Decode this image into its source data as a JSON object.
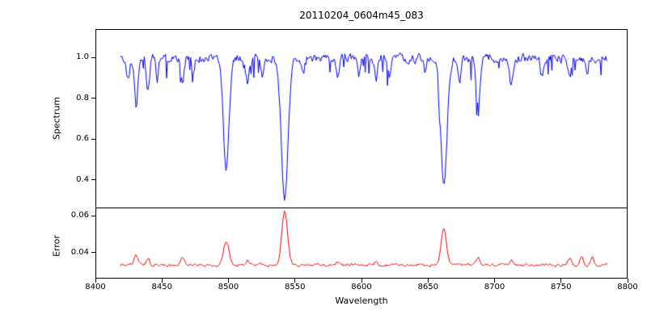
{
  "title": "20110204_0604m45_083",
  "x_axis": {
    "label": "Wavelength",
    "ticks": [
      "8400",
      "8450",
      "8500",
      "8550",
      "8600",
      "8650",
      "8700",
      "8750",
      "8800"
    ]
  },
  "chart_data": [
    {
      "panel": "spectrum",
      "type": "line",
      "ylabel": "Spectrum",
      "color": "#0000ee",
      "xlim": [
        8400,
        8800
      ],
      "ylim": [
        0.26,
        1.14
      ],
      "yticks": [
        "1.0",
        "0.8",
        "0.6",
        "0.4"
      ],
      "x_start": 8418,
      "x_end": 8786,
      "x_step": 0.7,
      "baseline": 1.0,
      "noise_sigma": 0.035,
      "spike_prob": 0.055,
      "spike_amp": 0.11,
      "seed": 83,
      "absorption_lines": [
        {
          "center": 8424.0,
          "depth": 0.1,
          "width": 1.2
        },
        {
          "center": 8430.0,
          "depth": 0.24,
          "width": 1.3
        },
        {
          "center": 8439.0,
          "depth": 0.17,
          "width": 1.2
        },
        {
          "center": 8446.0,
          "depth": 0.1,
          "width": 1.0
        },
        {
          "center": 8465.0,
          "depth": 0.13,
          "width": 1.2
        },
        {
          "center": 8473.0,
          "depth": 0.08,
          "width": 1.0
        },
        {
          "center": 8498.0,
          "depth": 0.55,
          "width": 2.2
        },
        {
          "center": 8514.0,
          "depth": 0.12,
          "width": 1.3
        },
        {
          "center": 8525.0,
          "depth": 0.08,
          "width": 1.0
        },
        {
          "center": 8542.1,
          "depth": 0.7,
          "width": 2.6
        },
        {
          "center": 8556.0,
          "depth": 0.08,
          "width": 1.0
        },
        {
          "center": 8582.0,
          "depth": 0.11,
          "width": 1.2
        },
        {
          "center": 8598.0,
          "depth": 0.09,
          "width": 1.0
        },
        {
          "center": 8611.0,
          "depth": 0.1,
          "width": 1.2
        },
        {
          "center": 8621.0,
          "depth": 0.09,
          "width": 1.0
        },
        {
          "center": 8648.0,
          "depth": 0.08,
          "width": 1.0
        },
        {
          "center": 8662.1,
          "depth": 0.63,
          "width": 2.4
        },
        {
          "center": 8674.0,
          "depth": 0.1,
          "width": 1.0
        },
        {
          "center": 8688.0,
          "depth": 0.24,
          "width": 1.5
        },
        {
          "center": 8713.0,
          "depth": 0.12,
          "width": 1.2
        },
        {
          "center": 8736.0,
          "depth": 0.09,
          "width": 1.1
        },
        {
          "center": 8757.0,
          "depth": 0.1,
          "width": 1.1
        },
        {
          "center": 8770.0,
          "depth": 0.08,
          "width": 1.0
        }
      ]
    },
    {
      "panel": "error",
      "type": "line",
      "ylabel": "Error",
      "color": "#ee0000",
      "xlim": [
        8400,
        8800
      ],
      "ylim": [
        0.026,
        0.064
      ],
      "yticks": [
        "0.06",
        "0.04"
      ],
      "x_start": 8418,
      "x_end": 8786,
      "x_step": 0.7,
      "baseline": 0.033,
      "noise_sigma": 0.0012,
      "spike_prob": 0.0,
      "spike_amp": 0.0,
      "seed": 45,
      "emission_peaks": [
        {
          "center": 8430.0,
          "height": 0.005,
          "width": 1.5
        },
        {
          "center": 8439.0,
          "height": 0.004,
          "width": 1.2
        },
        {
          "center": 8465.0,
          "height": 0.004,
          "width": 1.5
        },
        {
          "center": 8498.0,
          "height": 0.013,
          "width": 2.0
        },
        {
          "center": 8514.0,
          "height": 0.003,
          "width": 1.2
        },
        {
          "center": 8542.1,
          "height": 0.029,
          "width": 2.2
        },
        {
          "center": 8582.0,
          "height": 0.002,
          "width": 1.2
        },
        {
          "center": 8611.0,
          "height": 0.002,
          "width": 1.2
        },
        {
          "center": 8662.1,
          "height": 0.02,
          "width": 2.0
        },
        {
          "center": 8688.0,
          "height": 0.004,
          "width": 1.5
        },
        {
          "center": 8713.0,
          "height": 0.003,
          "width": 1.2
        },
        {
          "center": 8757.0,
          "height": 0.004,
          "width": 1.2
        },
        {
          "center": 8766.0,
          "height": 0.005,
          "width": 1.2
        },
        {
          "center": 8774.0,
          "height": 0.004,
          "width": 1.2
        }
      ]
    }
  ]
}
